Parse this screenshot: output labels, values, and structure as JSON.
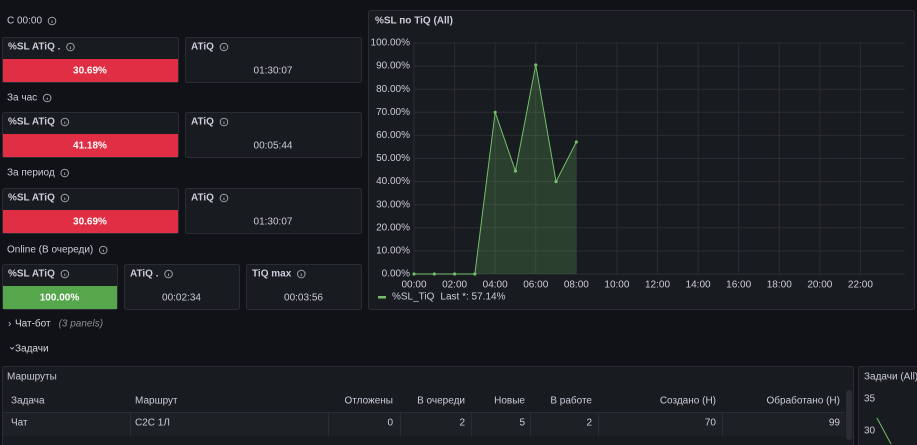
{
  "sections": [
    {
      "title": "С 00:00",
      "panels": [
        {
          "title": "%SL ATiQ .",
          "value": "30.69%",
          "color": "#e02f44"
        },
        {
          "title": "ATiQ",
          "value": "01:30:07"
        }
      ]
    },
    {
      "title": "За час",
      "panels": [
        {
          "title": "%SL ATiQ",
          "value": "41.18%",
          "color": "#e02f44"
        },
        {
          "title": "ATiQ",
          "value": "00:05:44"
        }
      ]
    },
    {
      "title": "За период",
      "panels": [
        {
          "title": "%SL ATiQ",
          "value": "30.69%",
          "color": "#e02f44"
        },
        {
          "title": "ATiQ",
          "value": "01:30:07"
        }
      ]
    },
    {
      "title": "Online (В очереди)",
      "panels": [
        {
          "title": "%SL ATiQ",
          "value": "100.00%",
          "color": "#56a64b"
        },
        {
          "title": "ATiQ .",
          "value": "00:02:34"
        },
        {
          "title": "TiQ max",
          "value": "00:03:56"
        }
      ]
    }
  ],
  "chart_data": {
    "type": "area",
    "title": "%SL по TiQ (All)",
    "x": [
      0,
      1,
      2,
      3,
      4,
      5,
      6,
      7,
      8
    ],
    "series": [
      {
        "name": "%SL_TiQ",
        "color": "#73bf69",
        "values": [
          0,
          0,
          0,
          0,
          70,
          44.6,
          90.5,
          40,
          57.14
        ]
      }
    ],
    "legend_stat": "Last *: 57.14%",
    "xlim": [
      0,
      24
    ],
    "xticks": [
      {
        "value": 0,
        "label": "00:00"
      },
      {
        "value": 2,
        "label": "02:00"
      },
      {
        "value": 4,
        "label": "04:00"
      },
      {
        "value": 6,
        "label": "06:00"
      },
      {
        "value": 8,
        "label": "08:00"
      },
      {
        "value": 10,
        "label": "10:00"
      },
      {
        "value": 12,
        "label": "12:00"
      },
      {
        "value": 14,
        "label": "14:00"
      },
      {
        "value": 16,
        "label": "16:00"
      },
      {
        "value": 18,
        "label": "18:00"
      },
      {
        "value": 20,
        "label": "20:00"
      },
      {
        "value": 22,
        "label": "22:00"
      }
    ],
    "ylim": [
      0,
      100
    ],
    "yticks": [
      {
        "value": 0,
        "label": "0.00%"
      },
      {
        "value": 10,
        "label": "10.00%"
      },
      {
        "value": 20,
        "label": "20.00%"
      },
      {
        "value": 30,
        "label": "30.00%"
      },
      {
        "value": 40,
        "label": "40.00%"
      },
      {
        "value": 50,
        "label": "50.00%"
      },
      {
        "value": 60,
        "label": "60.00%"
      },
      {
        "value": 70,
        "label": "70.00%"
      },
      {
        "value": 80,
        "label": "80.00%"
      },
      {
        "value": 90,
        "label": "90.00%"
      },
      {
        "value": 100,
        "label": "100.00%"
      }
    ],
    "grid": true
  },
  "rows": [
    {
      "title": "Чат-бот",
      "note": "(3 panels)"
    },
    {
      "title": "Задачи"
    }
  ],
  "table": {
    "title": "Маршруты",
    "columns": [
      "Задача",
      "Маршрут",
      "Отложены",
      "В очереди",
      "Новые",
      "В работе",
      "Создано (Н)",
      "Обработано (Н)"
    ],
    "rows": [
      [
        "Чат",
        "С2С 1Л",
        0,
        2,
        5,
        2,
        70,
        99
      ]
    ]
  },
  "side_panel": {
    "title": "Задачи (All)",
    "yticks": [
      35,
      30
    ]
  }
}
